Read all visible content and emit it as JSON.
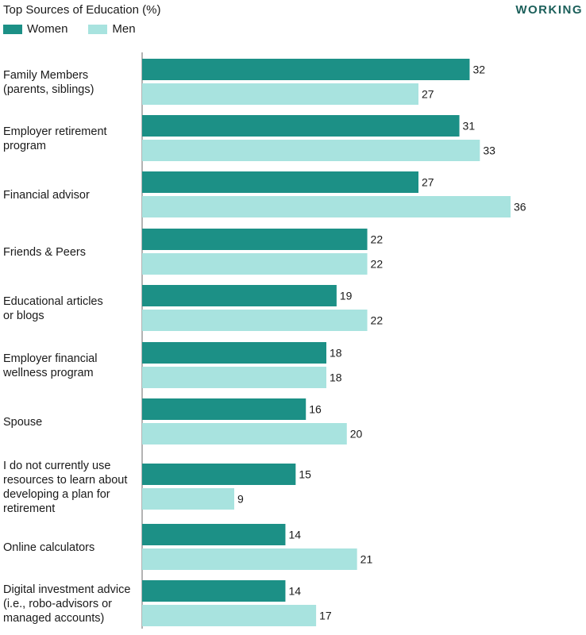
{
  "header": {
    "badge": "WORKING"
  },
  "chart_data": {
    "type": "bar",
    "orientation": "horizontal",
    "title": "Top Sources of Education (%)",
    "categories": [
      [
        "Family Members",
        "(parents, siblings)"
      ],
      [
        "Employer retirement",
        "program"
      ],
      [
        "Financial advisor"
      ],
      [
        "Friends & Peers"
      ],
      [
        "Educational articles",
        "or blogs"
      ],
      [
        "Employer financial",
        "wellness program"
      ],
      [
        "Spouse"
      ],
      [
        "I do not currently use",
        "resources to learn about",
        "developing a plan for",
        "retirement"
      ],
      [
        "Online calculators"
      ],
      [
        "Digital investment advice",
        "(i.e., robo-advisors or",
        "managed accounts)"
      ]
    ],
    "series": [
      {
        "name": "Women",
        "color": "#1c9086",
        "values": [
          32,
          31,
          27,
          22,
          19,
          18,
          16,
          15,
          14,
          14
        ]
      },
      {
        "name": "Men",
        "color": "#a8e3df",
        "values": [
          27,
          33,
          36,
          22,
          22,
          18,
          20,
          9,
          21,
          17
        ]
      }
    ],
    "xlim": [
      0,
      36
    ],
    "legend": "top-left",
    "grid": false
  }
}
